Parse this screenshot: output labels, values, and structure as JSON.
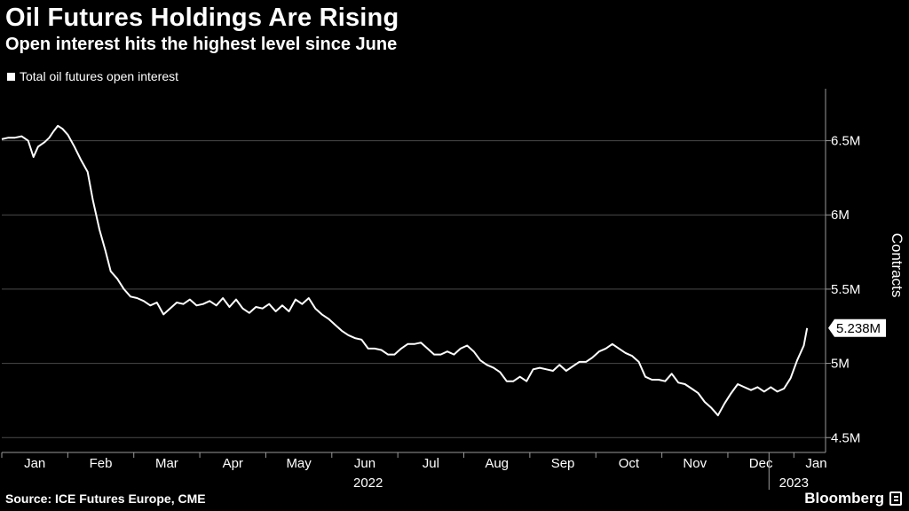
{
  "header": {
    "title": "Oil Futures Holdings Are Rising",
    "subtitle": "Open interest hits the highest level since June"
  },
  "footer": {
    "source": "Source: ICE Futures Europe, CME",
    "brand": "Bloomberg"
  },
  "colors": {
    "background": "#000000",
    "line": "#ffffff",
    "grid": "#4a4a4a"
  },
  "chart_data": {
    "type": "line",
    "title": "Oil Futures Holdings Are Rising",
    "subtitle": "Open interest hits the highest level since June",
    "xlabel": "",
    "ylabel": "Contracts",
    "ylim": [
      4.4,
      6.85
    ],
    "yticks": [
      4.5,
      5,
      5.5,
      6,
      6.5
    ],
    "ytick_labels": [
      "4.5M",
      "5M",
      "5.5M",
      "6M",
      "6.5M"
    ],
    "grid": true,
    "legend": "top-left",
    "x_range": [
      0,
      12.2
    ],
    "month_ticks": [
      "Jan",
      "Feb",
      "Mar",
      "Apr",
      "May",
      "Jun",
      "Jul",
      "Aug",
      "Sep",
      "Oct",
      "Nov",
      "Dec",
      "Jan"
    ],
    "year_labels": [
      {
        "x": 5.55,
        "label": "2022"
      },
      {
        "x": 12.0,
        "label": "2023"
      }
    ],
    "last_value_label": "5.238M",
    "series": [
      {
        "name": "Total oil futures open interest",
        "unit": "million contracts",
        "points": [
          [
            0.0,
            6.51
          ],
          [
            0.1,
            6.52
          ],
          [
            0.2,
            6.52
          ],
          [
            0.3,
            6.53
          ],
          [
            0.4,
            6.5
          ],
          [
            0.48,
            6.39
          ],
          [
            0.55,
            6.46
          ],
          [
            0.65,
            6.49
          ],
          [
            0.72,
            6.52
          ],
          [
            0.78,
            6.56
          ],
          [
            0.85,
            6.6
          ],
          [
            0.92,
            6.58
          ],
          [
            1.0,
            6.54
          ],
          [
            1.1,
            6.46
          ],
          [
            1.2,
            6.37
          ],
          [
            1.3,
            6.29
          ],
          [
            1.38,
            6.1
          ],
          [
            1.48,
            5.9
          ],
          [
            1.57,
            5.76
          ],
          [
            1.65,
            5.62
          ],
          [
            1.75,
            5.57
          ],
          [
            1.85,
            5.5
          ],
          [
            1.95,
            5.45
          ],
          [
            2.05,
            5.44
          ],
          [
            2.15,
            5.42
          ],
          [
            2.25,
            5.39
          ],
          [
            2.35,
            5.41
          ],
          [
            2.45,
            5.33
          ],
          [
            2.55,
            5.37
          ],
          [
            2.65,
            5.41
          ],
          [
            2.75,
            5.4
          ],
          [
            2.85,
            5.43
          ],
          [
            2.95,
            5.39
          ],
          [
            3.05,
            5.4
          ],
          [
            3.15,
            5.42
          ],
          [
            3.25,
            5.39
          ],
          [
            3.35,
            5.44
          ],
          [
            3.45,
            5.38
          ],
          [
            3.55,
            5.43
          ],
          [
            3.65,
            5.37
          ],
          [
            3.75,
            5.34
          ],
          [
            3.85,
            5.38
          ],
          [
            3.95,
            5.37
          ],
          [
            4.05,
            5.4
          ],
          [
            4.15,
            5.35
          ],
          [
            4.25,
            5.39
          ],
          [
            4.35,
            5.35
          ],
          [
            4.45,
            5.43
          ],
          [
            4.55,
            5.4
          ],
          [
            4.65,
            5.44
          ],
          [
            4.75,
            5.37
          ],
          [
            4.85,
            5.33
          ],
          [
            4.95,
            5.3
          ],
          [
            5.05,
            5.26
          ],
          [
            5.15,
            5.22
          ],
          [
            5.25,
            5.19
          ],
          [
            5.35,
            5.17
          ],
          [
            5.45,
            5.16
          ],
          [
            5.55,
            5.1
          ],
          [
            5.65,
            5.1
          ],
          [
            5.75,
            5.09
          ],
          [
            5.85,
            5.06
          ],
          [
            5.95,
            5.06
          ],
          [
            6.05,
            5.1
          ],
          [
            6.15,
            5.13
          ],
          [
            6.25,
            5.13
          ],
          [
            6.35,
            5.14
          ],
          [
            6.45,
            5.1
          ],
          [
            6.55,
            5.06
          ],
          [
            6.65,
            5.06
          ],
          [
            6.75,
            5.08
          ],
          [
            6.85,
            5.06
          ],
          [
            6.95,
            5.1
          ],
          [
            7.05,
            5.12
          ],
          [
            7.15,
            5.08
          ],
          [
            7.25,
            5.02
          ],
          [
            7.35,
            4.99
          ],
          [
            7.45,
            4.97
          ],
          [
            7.55,
            4.94
          ],
          [
            7.65,
            4.88
          ],
          [
            7.75,
            4.88
          ],
          [
            7.85,
            4.91
          ],
          [
            7.95,
            4.88
          ],
          [
            8.05,
            4.96
          ],
          [
            8.15,
            4.97
          ],
          [
            8.25,
            4.96
          ],
          [
            8.35,
            4.95
          ],
          [
            8.45,
            4.99
          ],
          [
            8.55,
            4.95
          ],
          [
            8.65,
            4.98
          ],
          [
            8.75,
            5.01
          ],
          [
            8.85,
            5.01
          ],
          [
            8.95,
            5.04
          ],
          [
            9.05,
            5.08
          ],
          [
            9.15,
            5.1
          ],
          [
            9.25,
            5.13
          ],
          [
            9.35,
            5.1
          ],
          [
            9.45,
            5.07
          ],
          [
            9.55,
            5.05
          ],
          [
            9.65,
            5.01
          ],
          [
            9.75,
            4.91
          ],
          [
            9.85,
            4.89
          ],
          [
            9.95,
            4.89
          ],
          [
            10.05,
            4.88
          ],
          [
            10.15,
            4.93
          ],
          [
            10.25,
            4.87
          ],
          [
            10.35,
            4.86
          ],
          [
            10.45,
            4.83
          ],
          [
            10.55,
            4.8
          ],
          [
            10.65,
            4.74
          ],
          [
            10.75,
            4.7
          ],
          [
            10.85,
            4.65
          ],
          [
            10.95,
            4.73
          ],
          [
            11.05,
            4.8
          ],
          [
            11.15,
            4.86
          ],
          [
            11.25,
            4.84
          ],
          [
            11.35,
            4.82
          ],
          [
            11.45,
            4.84
          ],
          [
            11.55,
            4.81
          ],
          [
            11.65,
            4.84
          ],
          [
            11.75,
            4.81
          ],
          [
            11.85,
            4.83
          ],
          [
            11.95,
            4.9
          ],
          [
            12.05,
            5.02
          ],
          [
            12.15,
            5.12
          ],
          [
            12.2,
            5.238
          ]
        ]
      }
    ]
  }
}
